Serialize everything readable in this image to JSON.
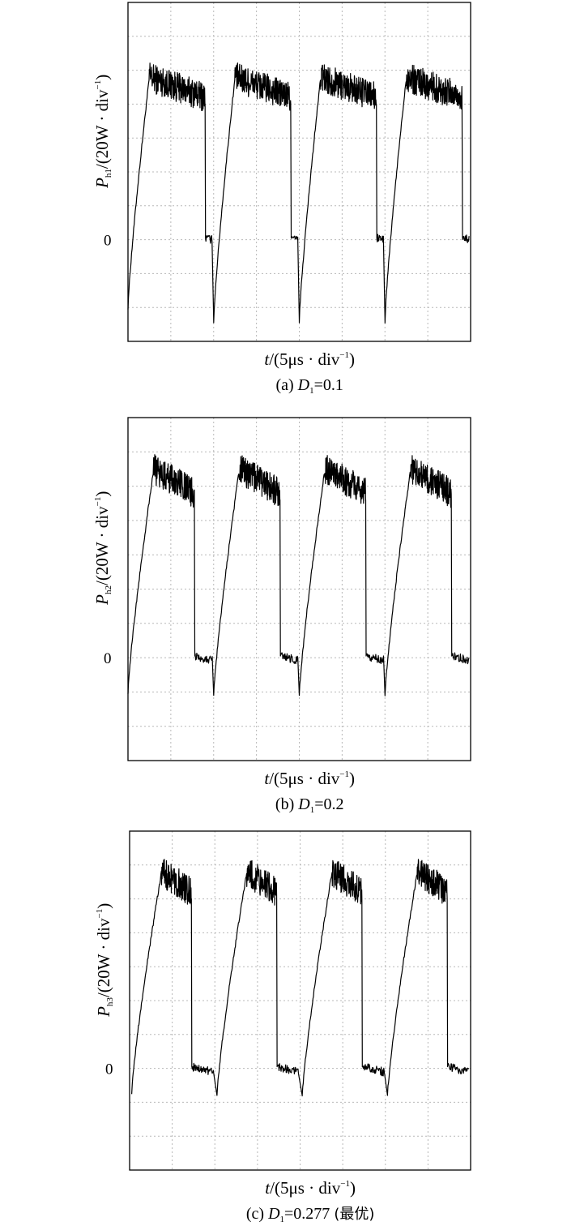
{
  "chart_data": [
    {
      "type": "line",
      "panel": "a",
      "caption_prefix": "(a) ",
      "caption_var": "D",
      "caption_sub": "1",
      "caption_value": "=0.1",
      "caption_suffix": "",
      "ylabel_var": "P",
      "ylabel_sub": "h1",
      "ylabel_unit": "/(20W · div",
      "ylabel_exp": "−1",
      "ylabel_close": ")",
      "xlabel_var": "t",
      "xlabel_unit": "/(5μs · div",
      "xlabel_exp": "−1",
      "xlabel_close": ")",
      "zero_label": "0",
      "xlim": [
        0,
        8
      ],
      "ylim": [
        -3,
        7
      ],
      "grid": true,
      "baseline_div": 0,
      "period_div": 2,
      "rise_start_div": 0.0,
      "rise_start_val": -2.0,
      "plateau_start_div": 0.5,
      "plateau_val": 4.8,
      "plateau_end_val": 4.2,
      "fall_div": 1.8,
      "dip_val": -2.4,
      "noise": 0.55
    },
    {
      "type": "line",
      "panel": "b",
      "caption_prefix": "(b) ",
      "caption_var": "D",
      "caption_sub": "1",
      "caption_value": "=0.2",
      "caption_suffix": "",
      "ylabel_var": "P",
      "ylabel_sub": "h2",
      "ylabel_unit": "/(20W · div",
      "ylabel_exp": "−1",
      "ylabel_close": ")",
      "xlabel_var": "t",
      "xlabel_unit": "/(5μs · div",
      "xlabel_exp": "−1",
      "xlabel_close": ")",
      "zero_label": "0",
      "xlim": [
        0,
        8
      ],
      "ylim": [
        -3,
        7
      ],
      "grid": true,
      "baseline_div": 0,
      "period_div": 2,
      "rise_start_div": 0.0,
      "rise_start_val": -1.0,
      "plateau_start_div": 0.6,
      "plateau_val": 5.5,
      "plateau_end_val": 4.8,
      "fall_div": 1.55,
      "dip_val": -1.1,
      "noise": 0.55
    },
    {
      "type": "line",
      "panel": "c",
      "caption_prefix": "(c) ",
      "caption_var": "D",
      "caption_sub": "1",
      "caption_value": "=0.277 ",
      "caption_suffix": "(最优)",
      "ylabel_var": "P",
      "ylabel_sub": "h3",
      "ylabel_unit": "/(20W · div",
      "ylabel_exp": "−1",
      "ylabel_close": ")",
      "xlabel_var": "t",
      "xlabel_unit": "/(5μs · div",
      "xlabel_exp": "−1",
      "xlabel_close": ")",
      "zero_label": "0",
      "xlim": [
        0,
        8
      ],
      "ylim": [
        -3,
        7
      ],
      "grid": true,
      "baseline_div": 0,
      "period_div": 2,
      "rise_start_div": 0.05,
      "rise_start_val": -0.7,
      "plateau_start_div": 0.75,
      "plateau_val": 5.8,
      "plateau_end_val": 5.2,
      "fall_div": 1.45,
      "dip_val": -0.8,
      "noise": 0.55
    }
  ]
}
